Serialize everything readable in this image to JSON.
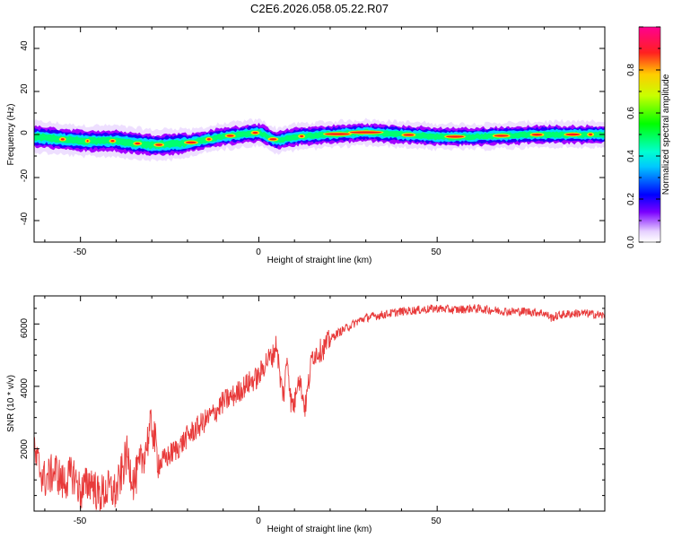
{
  "title": "C2E6.2026.058.05.22.R07",
  "colors": {
    "snr_line": "#e83a3a",
    "axes": "#000000"
  },
  "chart_data": [
    {
      "type": "heatmap",
      "xlabel": "Height of straight line (km)",
      "ylabel": "Frequency (Hz)",
      "xlim": [
        -63,
        97
      ],
      "ylim": [
        -50,
        50
      ],
      "x_ticks": [
        "-50",
        "0",
        "50"
      ],
      "y_ticks": [
        "40",
        "20",
        "0",
        "-20",
        "-40"
      ],
      "colorbar": {
        "label": "Normalized spectral amplitude",
        "range": [
          0.0,
          1.0
        ],
        "ticks": [
          "0.0",
          "0.2",
          "0.4",
          "0.6",
          "0.8"
        ],
        "colormap": "hsv-rainbow (white-violet-blue-cyan-green-yellow-red-magenta)"
      },
      "ridge_center_hz": [
        {
          "x": -63,
          "y": -1
        },
        {
          "x": -50,
          "y": -3
        },
        {
          "x": -40,
          "y": -3
        },
        {
          "x": -30,
          "y": -5
        },
        {
          "x": -20,
          "y": -4
        },
        {
          "x": -10,
          "y": -1
        },
        {
          "x": 0,
          "y": 1
        },
        {
          "x": 5,
          "y": -3
        },
        {
          "x": 10,
          "y": -1
        },
        {
          "x": 20,
          "y": 0
        },
        {
          "x": 30,
          "y": 1
        },
        {
          "x": 40,
          "y": 0
        },
        {
          "x": 50,
          "y": -1
        },
        {
          "x": 60,
          "y": -1
        },
        {
          "x": 80,
          "y": 0
        },
        {
          "x": 97,
          "y": 0
        }
      ]
    },
    {
      "type": "line",
      "xlabel": "Height of straight line (km)",
      "ylabel": "SNR (10 * v/v)",
      "xlim": [
        -63,
        97
      ],
      "ylim": [
        0,
        6900
      ],
      "x_ticks": [
        "-50",
        "0",
        "50"
      ],
      "y_ticks": [
        "6000",
        "4000",
        "2000"
      ],
      "series": [
        {
          "x": [
            -63,
            -60,
            -57,
            -55,
            -52,
            -50,
            -47,
            -45,
            -42,
            -40,
            -37,
            -35,
            -32,
            -30,
            -28,
            -25,
            -22,
            -20,
            -17,
            -15,
            -12,
            -10,
            -7,
            -5,
            -3,
            0,
            2,
            4,
            5,
            6,
            7,
            8,
            9,
            10,
            11,
            12,
            13,
            15,
            18,
            20,
            22,
            25,
            28,
            30,
            35,
            40,
            45,
            50,
            55,
            60,
            65,
            70,
            75,
            80,
            82,
            85,
            90,
            95,
            97
          ],
          "values": [
            1800,
            1000,
            1300,
            900,
            1200,
            600,
            1000,
            500,
            700,
            600,
            1800,
            900,
            1900,
            2800,
            1500,
            1800,
            2100,
            2400,
            2700,
            2900,
            3200,
            3500,
            3700,
            3900,
            4100,
            4300,
            4800,
            5000,
            5400,
            4200,
            3700,
            5000,
            3500,
            3400,
            4400,
            3900,
            3300,
            5000,
            5200,
            5500,
            5700,
            5900,
            6100,
            6200,
            6300,
            6400,
            6450,
            6500,
            6450,
            6500,
            6450,
            6400,
            6400,
            6350,
            6200,
            6300,
            6350,
            6300,
            6250
          ]
        }
      ]
    }
  ]
}
